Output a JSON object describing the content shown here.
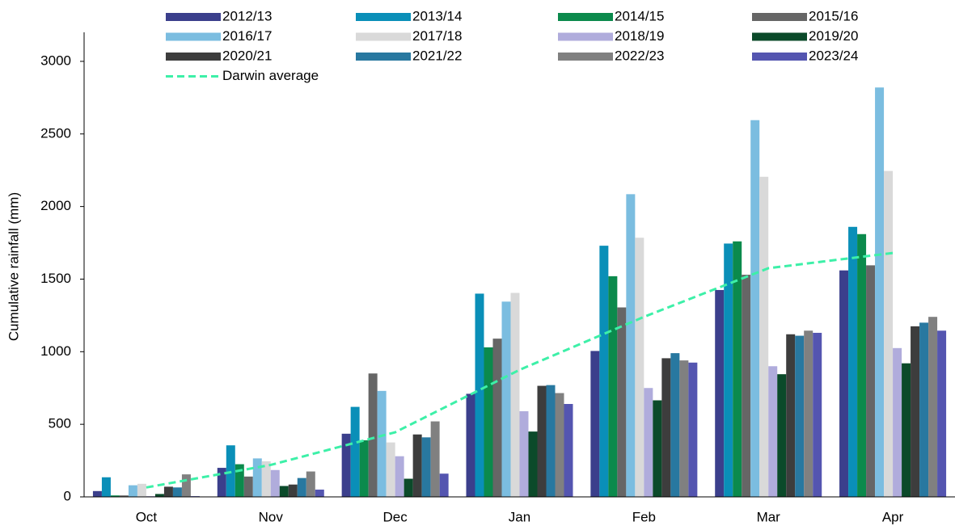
{
  "chart_data": {
    "type": "bar",
    "y_label": "Cumulative rainfall (mm)",
    "categories": [
      "Oct",
      "Nov",
      "Dec",
      "Jan",
      "Feb",
      "Mar",
      "Apr"
    ],
    "ylim": [
      0,
      3200
    ],
    "yticks": [
      0,
      500,
      1000,
      1500,
      2000,
      2500,
      3000
    ],
    "series": [
      {
        "name": "2012/13",
        "color": "#3b3f8c",
        "values": [
          40,
          200,
          435,
          710,
          1005,
          1425,
          1560
        ]
      },
      {
        "name": "2013/14",
        "color": "#0a8fb8",
        "values": [
          135,
          355,
          620,
          1400,
          1730,
          1745,
          1860
        ]
      },
      {
        "name": "2014/15",
        "color": "#0b8a4c",
        "values": [
          10,
          225,
          390,
          1030,
          1520,
          1760,
          1810
        ]
      },
      {
        "name": "2015/16",
        "color": "#666666",
        "values": [
          10,
          140,
          850,
          1090,
          1305,
          1530,
          1595
        ]
      },
      {
        "name": "2016/17",
        "color": "#7bbde0",
        "values": [
          80,
          265,
          730,
          1345,
          2085,
          2595,
          2820
        ]
      },
      {
        "name": "2017/18",
        "color": "#d9d9d9",
        "values": [
          90,
          245,
          375,
          1405,
          1785,
          2205,
          2245
        ]
      },
      {
        "name": "2018/19",
        "color": "#b0acdc",
        "values": [
          5,
          185,
          280,
          590,
          750,
          900,
          1025
        ]
      },
      {
        "name": "2019/20",
        "color": "#0b4a2a",
        "values": [
          20,
          75,
          125,
          450,
          665,
          845,
          920
        ]
      },
      {
        "name": "2020/21",
        "color": "#3d3d3d",
        "values": [
          70,
          85,
          430,
          765,
          955,
          1120,
          1175
        ]
      },
      {
        "name": "2021/22",
        "color": "#2878a0",
        "values": [
          65,
          130,
          410,
          770,
          990,
          1110,
          1200
        ]
      },
      {
        "name": "2022/23",
        "color": "#808080",
        "values": [
          155,
          175,
          520,
          715,
          940,
          1145,
          1240
        ]
      },
      {
        "name": "2023/24",
        "color": "#5455b0",
        "values": [
          5,
          50,
          160,
          640,
          925,
          1130,
          1145
        ]
      },
      {
        "name": "Darwin average",
        "color": "#3df0a8",
        "type": "line",
        "dashed": true,
        "values": [
          65,
          220,
          445,
          875,
          1240,
          1575,
          1680
        ]
      }
    ]
  }
}
